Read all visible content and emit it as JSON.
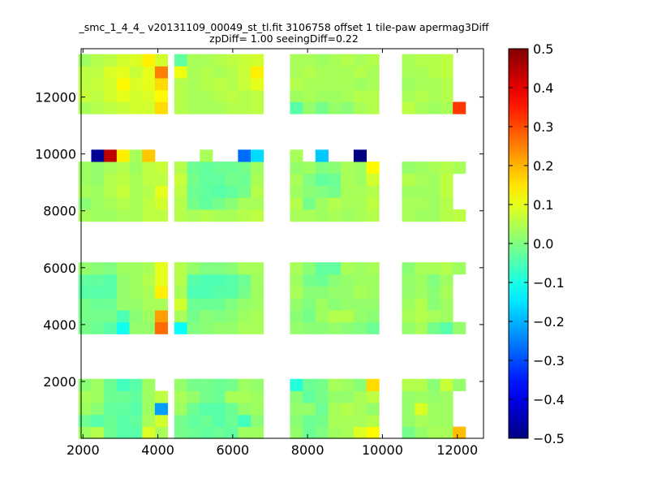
{
  "chart_data": {
    "type": "heatmap",
    "title_line1": "_smc_1_4_4_ v20131109_00049_st_tl.fit 3106758 offset 1 tile-paw apermag3Diff",
    "title_line2": "zpDiff= 1.00 seeingDiff=0.22",
    "xlim": [
      1950,
      12700
    ],
    "ylim": [
      0,
      13700
    ],
    "x_ticks": [
      2000,
      4000,
      6000,
      8000,
      10000,
      12000
    ],
    "y_ticks": [
      2000,
      4000,
      6000,
      8000,
      10000,
      12000
    ],
    "colorbar": {
      "colormap": "jet",
      "vmin": -0.5,
      "vmax": 0.5,
      "ticks": [
        0.5,
        0.4,
        0.3,
        0.2,
        0.1,
        0.0,
        -0.1,
        -0.2,
        -0.3,
        -0.4,
        -0.5
      ],
      "tick_labels": [
        "0.5",
        "0.4",
        "0.3",
        "0.2",
        "0.1",
        "0.0",
        "−0.1",
        "−0.2",
        "−0.3",
        "−0.4",
        "−0.5"
      ]
    },
    "cell_width": 340,
    "cell_height": 420,
    "column_x": [
      2050,
      2390,
      2730,
      3070,
      3410,
      3750,
      4090,
      4610,
      4950,
      5290,
      5630,
      5970,
      6310,
      6650,
      7700,
      8040,
      8380,
      8720,
      9060,
      9400,
      9740,
      10690,
      11030,
      11370,
      11710,
      12050
    ],
    "row_y": [
      200,
      620,
      1040,
      1460,
      1880,
      3880,
      4300,
      4720,
      5140,
      5560,
      5980,
      7840,
      8260,
      8680,
      9100,
      9520,
      9940,
      11620,
      12040,
      12460,
      12880,
      13300
    ],
    "grid_values": [
      [
        0.03,
        0.05,
        -0.02,
        -0.04,
        -0.04,
        0.09,
        0.04,
        -0.01,
        -0.02,
        -0.03,
        -0.02,
        -0.03,
        0.03,
        0.03,
        0.02,
        -0.02,
        0.0,
        0.03,
        0.04,
        0.09,
        0.13,
        -0.01,
        0.02,
        0.04,
        0.04,
        0.19
      ],
      [
        -0.02,
        -0.04,
        -0.02,
        -0.04,
        -0.03,
        0.04,
        0.08,
        -0.01,
        -0.03,
        -0.02,
        -0.04,
        -0.02,
        -0.06,
        0.01,
        0.01,
        -0.02,
        -0.01,
        0.04,
        0.04,
        0.04,
        0.05,
        0.02,
        0.04,
        0.03,
        0.03,
        null
      ],
      [
        0.03,
        0.01,
        -0.03,
        -0.03,
        -0.04,
        0.03,
        -0.22,
        0.03,
        -0.02,
        -0.04,
        -0.04,
        -0.02,
        0.02,
        0.03,
        0.02,
        0.02,
        -0.02,
        0.04,
        0.05,
        0.04,
        0.02,
        0.02,
        0.09,
        0.03,
        0.03,
        null
      ],
      [
        0.04,
        0.03,
        -0.02,
        -0.02,
        -0.03,
        0.03,
        0.06,
        0.04,
        0.02,
        -0.01,
        -0.02,
        0.04,
        0.04,
        0.03,
        0.01,
        -0.03,
        -0.01,
        0.02,
        0.02,
        0.04,
        0.06,
        0.02,
        0.03,
        0.02,
        0.03,
        null
      ],
      [
        0.01,
        0.03,
        -0.02,
        -0.06,
        -0.04,
        0.03,
        null,
        0.02,
        -0.01,
        -0.01,
        -0.02,
        -0.01,
        0.03,
        0.02,
        -0.09,
        -0.02,
        -0.01,
        0.04,
        0.03,
        0.01,
        0.16,
        0.05,
        0.05,
        0.01,
        0.07,
        0.02
      ],
      [
        -0.01,
        -0.02,
        -0.04,
        -0.11,
        0.02,
        0.02,
        0.27,
        -0.12,
        0.0,
        0.01,
        0.02,
        0.02,
        0.04,
        0.04,
        0.02,
        0.01,
        0.01,
        0.02,
        0.01,
        0.0,
        -0.02,
        0.02,
        0.04,
        -0.01,
        -0.04,
        0.02
      ],
      [
        -0.01,
        -0.01,
        -0.01,
        -0.05,
        0.01,
        0.03,
        0.22,
        0.04,
        -0.01,
        0.01,
        0.0,
        0.01,
        0.03,
        0.04,
        0.01,
        -0.01,
        0.03,
        0.05,
        0.05,
        0.02,
        0.01,
        0.04,
        0.05,
        0.04,
        0.03,
        null
      ],
      [
        -0.01,
        -0.02,
        -0.02,
        0.02,
        0.02,
        0.04,
        0.04,
        0.08,
        -0.02,
        -0.02,
        -0.02,
        0.0,
        0.02,
        0.03,
        0.02,
        0.0,
        0.03,
        0.01,
        0.02,
        0.02,
        0.02,
        0.03,
        0.05,
        0.01,
        0.03,
        null
      ],
      [
        -0.04,
        -0.04,
        -0.04,
        0.02,
        0.03,
        0.04,
        0.14,
        0.04,
        -0.05,
        -0.05,
        -0.04,
        -0.04,
        -0.01,
        0.03,
        0.04,
        0.01,
        0.01,
        0.02,
        0.02,
        0.04,
        0.03,
        0.02,
        0.03,
        0.01,
        0.04,
        null
      ],
      [
        -0.03,
        -0.03,
        -0.04,
        0.02,
        0.03,
        0.05,
        0.1,
        0.05,
        -0.04,
        -0.05,
        -0.05,
        -0.04,
        -0.02,
        0.03,
        0.03,
        -0.01,
        -0.02,
        0.01,
        0.02,
        0.03,
        0.03,
        0.02,
        0.03,
        0.0,
        0.03,
        null
      ],
      [
        0.02,
        0.01,
        0.0,
        0.03,
        0.03,
        0.04,
        0.1,
        0.05,
        0.02,
        0.0,
        0.0,
        0.01,
        0.04,
        0.04,
        0.04,
        0.01,
        -0.03,
        -0.03,
        0.04,
        0.03,
        0.04,
        0.01,
        0.04,
        0.04,
        0.05,
        0.03
      ],
      [
        0.04,
        0.03,
        0.03,
        0.04,
        0.04,
        0.06,
        0.06,
        0.05,
        0.04,
        0.05,
        0.04,
        0.04,
        0.05,
        0.06,
        0.04,
        0.04,
        0.03,
        0.04,
        0.03,
        0.04,
        0.05,
        0.04,
        0.03,
        0.03,
        0.05,
        0.06
      ],
      [
        0.01,
        0.03,
        0.04,
        0.05,
        0.04,
        0.06,
        0.08,
        0.05,
        -0.01,
        -0.03,
        -0.01,
        0.01,
        0.04,
        0.04,
        0.05,
        -0.01,
        0.03,
        0.05,
        0.04,
        0.04,
        0.06,
        0.04,
        0.04,
        0.03,
        0.05,
        null
      ],
      [
        0.04,
        0.03,
        0.05,
        0.07,
        0.04,
        0.05,
        0.1,
        0.06,
        -0.02,
        -0.03,
        -0.04,
        -0.03,
        -0.01,
        0.05,
        0.03,
        0.01,
        0.0,
        -0.01,
        0.04,
        0.04,
        0.05,
        0.03,
        0.03,
        0.03,
        0.06,
        null
      ],
      [
        0.03,
        0.02,
        0.05,
        0.06,
        0.04,
        0.06,
        0.06,
        0.07,
        -0.01,
        -0.03,
        -0.03,
        -0.01,
        -0.02,
        0.04,
        0.04,
        0.0,
        -0.03,
        -0.02,
        0.04,
        0.03,
        0.08,
        0.05,
        0.04,
        0.03,
        0.06,
        null
      ],
      [
        0.03,
        0.02,
        0.04,
        0.05,
        0.03,
        0.06,
        0.07,
        0.05,
        -0.02,
        -0.03,
        -0.02,
        -0.02,
        -0.01,
        0.03,
        0.02,
        0.03,
        0.0,
        0.01,
        0.04,
        0.03,
        0.13,
        0.02,
        0.03,
        0.04,
        0.05,
        0.04
      ],
      [
        null,
        -0.48,
        0.44,
        0.14,
        0.04,
        0.18,
        null,
        null,
        null,
        0.04,
        null,
        null,
        -0.27,
        -0.16,
        0.04,
        null,
        -0.18,
        null,
        null,
        -0.5,
        null,
        null,
        null,
        null,
        null,
        null
      ],
      [
        0.04,
        0.05,
        0.06,
        0.07,
        0.08,
        0.08,
        0.16,
        0.05,
        0.04,
        0.04,
        0.04,
        0.05,
        0.05,
        0.06,
        -0.04,
        0.02,
        -0.01,
        0.02,
        0.01,
        0.04,
        0.05,
        0.06,
        0.04,
        0.03,
        0.04,
        0.32
      ],
      [
        0.07,
        0.06,
        0.08,
        0.1,
        0.08,
        0.09,
        0.13,
        0.05,
        0.04,
        0.04,
        0.05,
        0.06,
        0.05,
        0.06,
        0.03,
        0.04,
        0.03,
        0.03,
        0.04,
        0.05,
        0.05,
        0.04,
        0.05,
        0.04,
        0.05,
        null
      ],
      [
        0.06,
        0.07,
        0.08,
        0.13,
        0.09,
        0.1,
        0.16,
        0.05,
        0.04,
        0.05,
        0.06,
        0.05,
        0.07,
        0.1,
        0.05,
        0.04,
        0.04,
        0.04,
        0.04,
        0.03,
        0.04,
        0.03,
        0.04,
        0.04,
        0.05,
        null
      ],
      [
        0.06,
        0.06,
        0.09,
        0.1,
        0.07,
        0.1,
        0.25,
        0.11,
        0.04,
        0.05,
        0.04,
        0.05,
        0.07,
        0.14,
        0.04,
        0.05,
        0.04,
        0.04,
        0.04,
        0.05,
        0.04,
        0.04,
        0.04,
        0.05,
        0.06,
        null
      ],
      [
        0.03,
        0.05,
        0.06,
        0.08,
        0.09,
        0.14,
        0.08,
        -0.03,
        0.04,
        0.04,
        0.05,
        0.06,
        0.07,
        0.08,
        0.04,
        0.04,
        0.03,
        0.04,
        0.05,
        0.04,
        0.05,
        0.04,
        0.05,
        0.05,
        0.06,
        null
      ]
    ]
  }
}
